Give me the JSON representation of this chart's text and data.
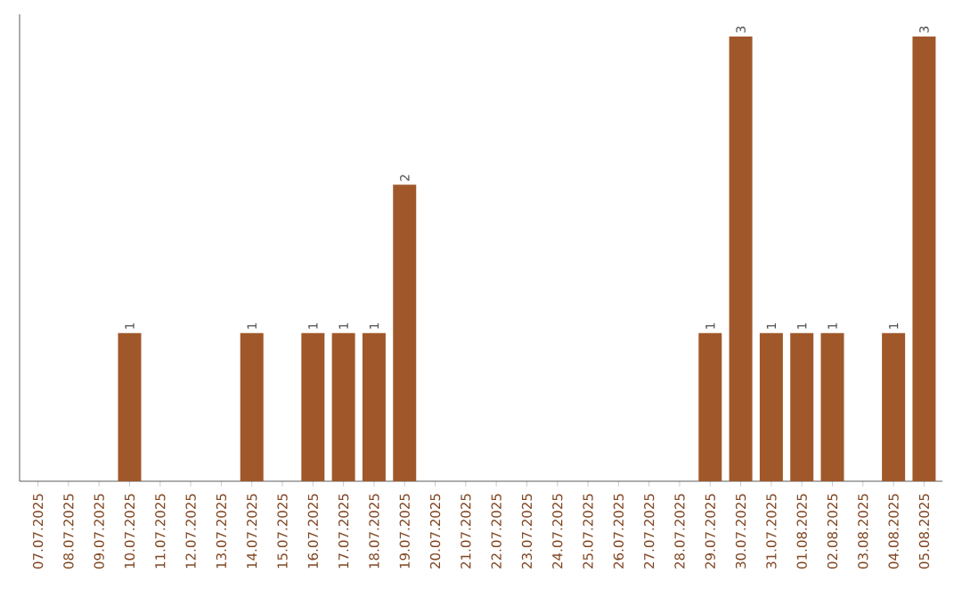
{
  "chart_data": {
    "type": "bar",
    "categories": [
      "07.07.2025",
      "08.07.2025",
      "09.07.2025",
      "10.07.2025",
      "11.07.2025",
      "12.07.2025",
      "13.07.2025",
      "14.07.2025",
      "15.07.2025",
      "16.07.2025",
      "17.07.2025",
      "18.07.2025",
      "19.07.2025",
      "20.07.2025",
      "21.07.2025",
      "22.07.2025",
      "23.07.2025",
      "24.07.2025",
      "25.07.2025",
      "26.07.2025",
      "27.07.2025",
      "28.07.2025",
      "29.07.2025",
      "30.07.2025",
      "31.07.2025",
      "01.08.2025",
      "02.08.2025",
      "03.08.2025",
      "04.08.2025",
      "05.08.2025"
    ],
    "values": [
      0,
      0,
      0,
      1,
      0,
      0,
      0,
      1,
      0,
      1,
      1,
      1,
      2,
      0,
      0,
      0,
      0,
      0,
      0,
      0,
      0,
      0,
      1,
      3,
      1,
      1,
      1,
      0,
      1,
      3
    ],
    "value_labels": [
      null,
      null,
      null,
      "1",
      null,
      null,
      null,
      "1",
      null,
      "1",
      "1",
      "1",
      "2",
      null,
      null,
      null,
      null,
      null,
      null,
      null,
      null,
      null,
      "1",
      "3",
      "1",
      "1",
      "1",
      null,
      "1",
      "3"
    ],
    "color": "#a0582a",
    "ylim": [
      0,
      3.15
    ],
    "tick_labels": "x",
    "grid": false
  }
}
